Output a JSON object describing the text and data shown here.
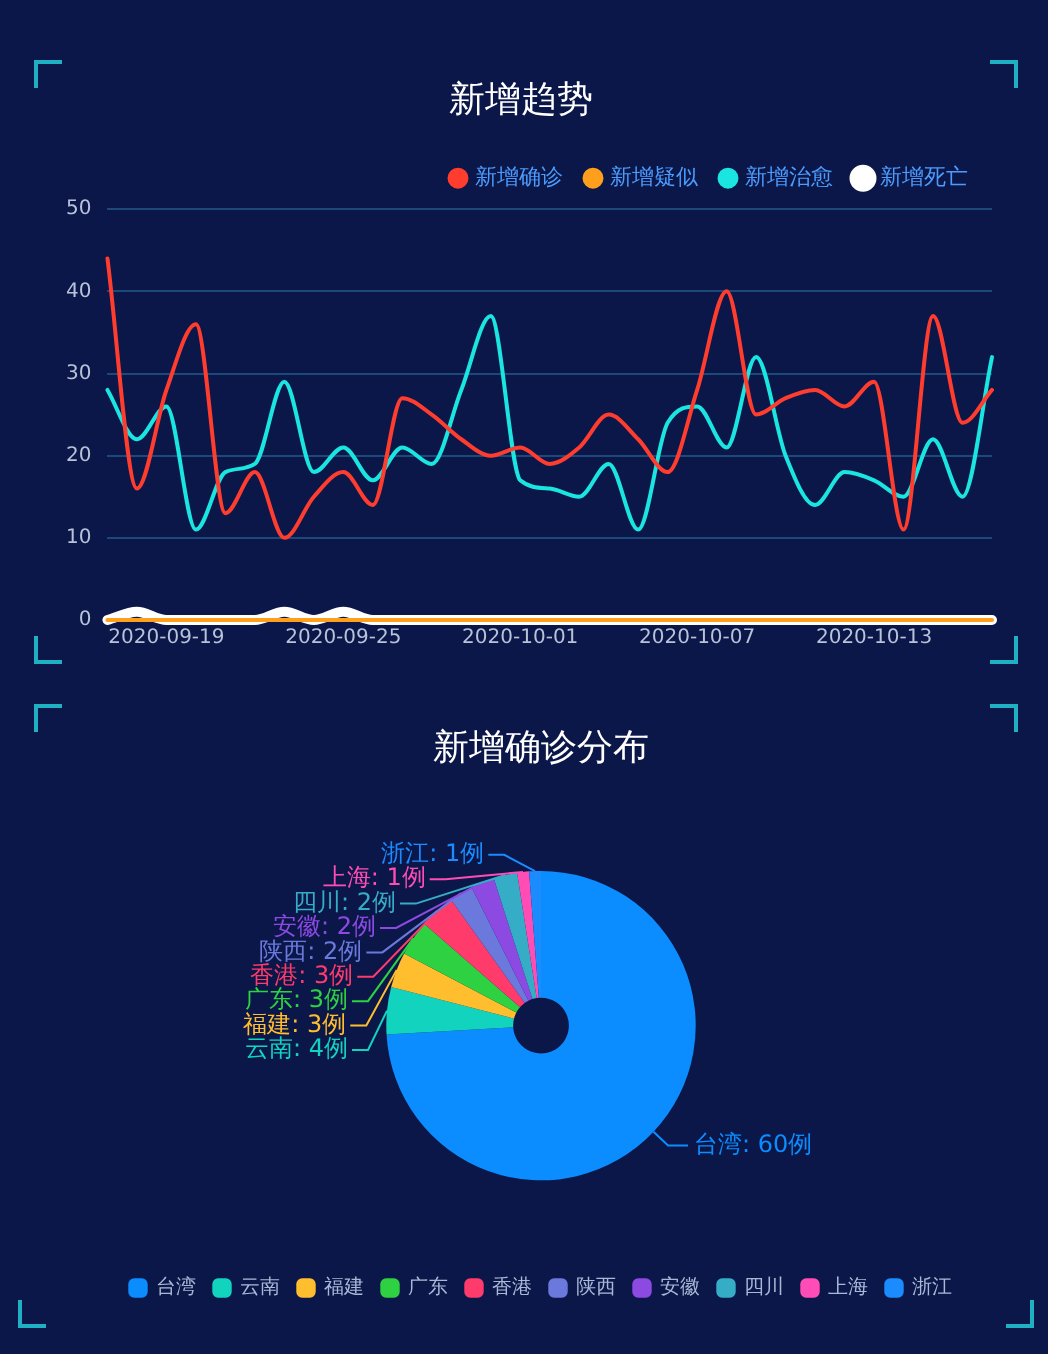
{
  "chart_data": [
    {
      "type": "line",
      "title": "新增趋势",
      "categories": [
        null,
        null,
        "2020-09-19",
        null,
        null,
        null,
        null,
        null,
        "2020-09-25",
        null,
        null,
        null,
        null,
        null,
        "2020-10-01",
        null,
        null,
        null,
        null,
        null,
        "2020-10-07",
        null,
        null,
        null,
        null,
        null,
        "2020-10-13",
        null,
        null,
        null,
        null
      ],
      "series": [
        {
          "name": "新增确诊",
          "color": "#ff3d2e",
          "values": [
            44,
            16,
            28,
            36,
            13,
            18,
            10,
            15,
            18,
            14,
            27,
            25,
            22,
            20,
            21,
            19,
            21,
            25,
            22,
            18,
            28,
            40,
            25,
            27,
            28,
            26,
            29,
            11,
            37,
            24,
            28
          ]
        },
        {
          "name": "新增疑似",
          "color": "#ff9f1c",
          "values": [
            0,
            0,
            0,
            0,
            0,
            0,
            0,
            0,
            0,
            0,
            0,
            0,
            0,
            0,
            0,
            0,
            0,
            0,
            0,
            0,
            0,
            0,
            0,
            0,
            0,
            0,
            0,
            0,
            0,
            0,
            0
          ]
        },
        {
          "name": "新增治愈",
          "color": "#1ae5e0",
          "values": [
            28,
            22,
            26,
            11,
            18,
            19,
            29,
            18,
            21,
            17,
            21,
            19,
            28,
            37,
            17,
            16,
            15,
            19,
            11,
            24,
            26,
            21,
            32,
            20,
            14,
            18,
            17,
            15,
            22,
            15,
            32
          ]
        },
        {
          "name": "新增死亡",
          "color": "#ffffff",
          "values": [
            0,
            1,
            0,
            0,
            0,
            0,
            1,
            0,
            1,
            0,
            0,
            0,
            0,
            0,
            0,
            0,
            0,
            0,
            0,
            0,
            0,
            0,
            0,
            0,
            0,
            0,
            0,
            0,
            0,
            0,
            0
          ]
        }
      ],
      "ylim": [
        0,
        50
      ],
      "yticks": [
        0,
        10,
        20,
        30,
        40,
        50
      ],
      "grid": "y",
      "legend": "top right"
    },
    {
      "type": "donut",
      "title": "新增确诊分布",
      "categories": [
        "台湾",
        "云南",
        "福建",
        "广东",
        "香港",
        "陕西",
        "安徽",
        "四川",
        "上海",
        "浙江"
      ],
      "values": [
        60,
        4,
        3,
        3,
        3,
        2,
        2,
        2,
        1,
        1
      ],
      "colors": [
        "#0b8dff",
        "#12d4be",
        "#ffbe2e",
        "#2ed142",
        "#ff3b6b",
        "#6b79dc",
        "#8c4ae2",
        "#36adc6",
        "#ff4db5",
        "#1a8cff"
      ],
      "value_labels": [
        "台湾: 60例",
        "云南: 4例",
        "福建: 3例",
        "广东: 3例",
        "香港: 3例",
        "陕西: 2例",
        "安徽: 2例",
        "四川: 2例",
        "上海: 1例",
        "浙江: 1例"
      ],
      "legend": "bottom"
    }
  ]
}
